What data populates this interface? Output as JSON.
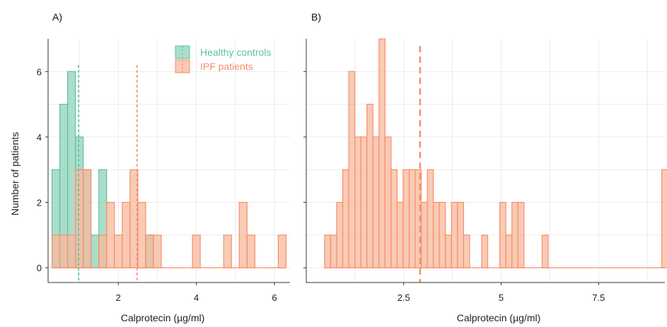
{
  "colors": {
    "healthy_fill": "#8fd1b9",
    "healthy_stroke": "#5cc3a0",
    "ipf_fill": "#f8b89c",
    "ipf_stroke": "#f4906a"
  },
  "chart_data": [
    {
      "panel_label": "A)",
      "type": "bar",
      "subtype": "histogram",
      "xlabel": "Calprotecin (µg/ml)",
      "ylabel": "Number of patients",
      "xlim": [
        0.2,
        6.4
      ],
      "ylim": [
        -0.45,
        7.0
      ],
      "xticks": [
        2,
        4,
        6
      ],
      "yticks": [
        0,
        2,
        4,
        6
      ],
      "grid": true,
      "legend": {
        "position": "top-right",
        "entries": [
          "Healthy controls",
          "IPF patients"
        ]
      },
      "bin_width": 0.2,
      "series": [
        {
          "name": "Healthy controls",
          "bins": [
            {
              "x0": 0.3,
              "x1": 0.5,
              "count": 3
            },
            {
              "x0": 0.5,
              "x1": 0.7,
              "count": 5
            },
            {
              "x0": 0.7,
              "x1": 0.9,
              "count": 6
            },
            {
              "x0": 0.9,
              "x1": 1.1,
              "count": 4
            },
            {
              "x0": 1.1,
              "x1": 1.3,
              "count": 3
            },
            {
              "x0": 1.3,
              "x1": 1.5,
              "count": 1
            },
            {
              "x0": 1.5,
              "x1": 1.7,
              "count": 3
            },
            {
              "x0": 2.7,
              "x1": 2.9,
              "count": 1
            }
          ],
          "mean_line": 0.98
        },
        {
          "name": "IPF patients",
          "bins": [
            {
              "x0": 0.3,
              "x1": 0.5,
              "count": 1
            },
            {
              "x0": 0.5,
              "x1": 0.7,
              "count": 1
            },
            {
              "x0": 0.7,
              "x1": 0.9,
              "count": 1
            },
            {
              "x0": 0.9,
              "x1": 1.1,
              "count": 3
            },
            {
              "x0": 1.1,
              "x1": 1.3,
              "count": 3
            },
            {
              "x0": 1.3,
              "x1": 1.5,
              "count": 0
            },
            {
              "x0": 1.5,
              "x1": 1.7,
              "count": 1
            },
            {
              "x0": 1.7,
              "x1": 1.9,
              "count": 2
            },
            {
              "x0": 1.9,
              "x1": 2.1,
              "count": 1
            },
            {
              "x0": 2.1,
              "x1": 2.3,
              "count": 2
            },
            {
              "x0": 2.3,
              "x1": 2.5,
              "count": 3
            },
            {
              "x0": 2.5,
              "x1": 2.7,
              "count": 2
            },
            {
              "x0": 2.7,
              "x1": 2.9,
              "count": 1
            },
            {
              "x0": 2.9,
              "x1": 3.1,
              "count": 1
            },
            {
              "x0": 3.1,
              "x1": 3.3,
              "count": 0
            },
            {
              "x0": 3.3,
              "x1": 3.5,
              "count": 0
            },
            {
              "x0": 3.5,
              "x1": 3.7,
              "count": 0
            },
            {
              "x0": 3.7,
              "x1": 3.9,
              "count": 0
            },
            {
              "x0": 3.9,
              "x1": 4.1,
              "count": 1
            },
            {
              "x0": 4.1,
              "x1": 4.3,
              "count": 0
            },
            {
              "x0": 4.3,
              "x1": 4.5,
              "count": 0
            },
            {
              "x0": 4.5,
              "x1": 4.7,
              "count": 0
            },
            {
              "x0": 4.7,
              "x1": 4.9,
              "count": 1
            },
            {
              "x0": 4.9,
              "x1": 5.1,
              "count": 0
            },
            {
              "x0": 5.1,
              "x1": 5.3,
              "count": 2
            },
            {
              "x0": 5.3,
              "x1": 5.5,
              "count": 1
            },
            {
              "x0": 5.5,
              "x1": 5.7,
              "count": 0
            },
            {
              "x0": 5.7,
              "x1": 5.9,
              "count": 0
            },
            {
              "x0": 5.9,
              "x1": 6.1,
              "count": 0
            },
            {
              "x0": 6.1,
              "x1": 6.3,
              "count": 1
            }
          ],
          "mean_line": 2.48
        }
      ]
    },
    {
      "panel_label": "B)",
      "type": "bar",
      "subtype": "histogram",
      "xlabel": "Calprotecin (µg/ml)",
      "ylabel": "",
      "xlim": [
        0.0,
        9.2
      ],
      "ylim": [
        -0.45,
        7.0
      ],
      "xticks": [
        2.5,
        5,
        7.5
      ],
      "xticklabels": [
        "2.5",
        "5",
        "7.5"
      ],
      "yticks": [
        0,
        2,
        4,
        6
      ],
      "grid": true,
      "bin_width": 0.155,
      "series": [
        {
          "name": "IPF patients",
          "bins": [
            {
              "x0": 0.47,
              "x1": 0.625,
              "count": 1
            },
            {
              "x0": 0.625,
              "x1": 0.78,
              "count": 1
            },
            {
              "x0": 0.78,
              "x1": 0.935,
              "count": 2
            },
            {
              "x0": 0.935,
              "x1": 1.09,
              "count": 3
            },
            {
              "x0": 1.09,
              "x1": 1.245,
              "count": 6
            },
            {
              "x0": 1.245,
              "x1": 1.4,
              "count": 4
            },
            {
              "x0": 1.4,
              "x1": 1.555,
              "count": 4
            },
            {
              "x0": 1.555,
              "x1": 1.71,
              "count": 5
            },
            {
              "x0": 1.71,
              "x1": 1.865,
              "count": 4
            },
            {
              "x0": 1.865,
              "x1": 2.02,
              "count": 7
            },
            {
              "x0": 2.02,
              "x1": 2.175,
              "count": 4
            },
            {
              "x0": 2.175,
              "x1": 2.33,
              "count": 3
            },
            {
              "x0": 2.33,
              "x1": 2.485,
              "count": 2
            },
            {
              "x0": 2.485,
              "x1": 2.64,
              "count": 3
            },
            {
              "x0": 2.64,
              "x1": 2.795,
              "count": 3
            },
            {
              "x0": 2.795,
              "x1": 2.95,
              "count": 3
            },
            {
              "x0": 2.95,
              "x1": 3.105,
              "count": 2
            },
            {
              "x0": 3.105,
              "x1": 3.26,
              "count": 3
            },
            {
              "x0": 3.26,
              "x1": 3.415,
              "count": 2
            },
            {
              "x0": 3.415,
              "x1": 3.57,
              "count": 2
            },
            {
              "x0": 3.57,
              "x1": 3.725,
              "count": 1
            },
            {
              "x0": 3.725,
              "x1": 3.88,
              "count": 2
            },
            {
              "x0": 3.88,
              "x1": 4.035,
              "count": 2
            },
            {
              "x0": 4.035,
              "x1": 4.19,
              "count": 1
            },
            {
              "x0": 4.19,
              "x1": 4.345,
              "count": 0
            },
            {
              "x0": 4.345,
              "x1": 4.5,
              "count": 0
            },
            {
              "x0": 4.5,
              "x1": 4.655,
              "count": 1
            },
            {
              "x0": 4.655,
              "x1": 4.81,
              "count": 0
            },
            {
              "x0": 4.81,
              "x1": 4.965,
              "count": 0
            },
            {
              "x0": 4.965,
              "x1": 5.12,
              "count": 2
            },
            {
              "x0": 5.12,
              "x1": 5.275,
              "count": 1
            },
            {
              "x0": 5.275,
              "x1": 5.43,
              "count": 2
            },
            {
              "x0": 5.43,
              "x1": 5.585,
              "count": 2
            },
            {
              "x0": 5.585,
              "x1": 5.74,
              "count": 0
            },
            {
              "x0": 5.74,
              "x1": 5.895,
              "count": 0
            },
            {
              "x0": 5.895,
              "x1": 6.05,
              "count": 0
            },
            {
              "x0": 6.05,
              "x1": 6.205,
              "count": 1
            },
            {
              "x0": 9.12,
              "x1": 9.275,
              "count": 3
            }
          ],
          "baseline_range": [
            0.47,
            9.2
          ],
          "mean_line": 2.92
        }
      ]
    }
  ]
}
